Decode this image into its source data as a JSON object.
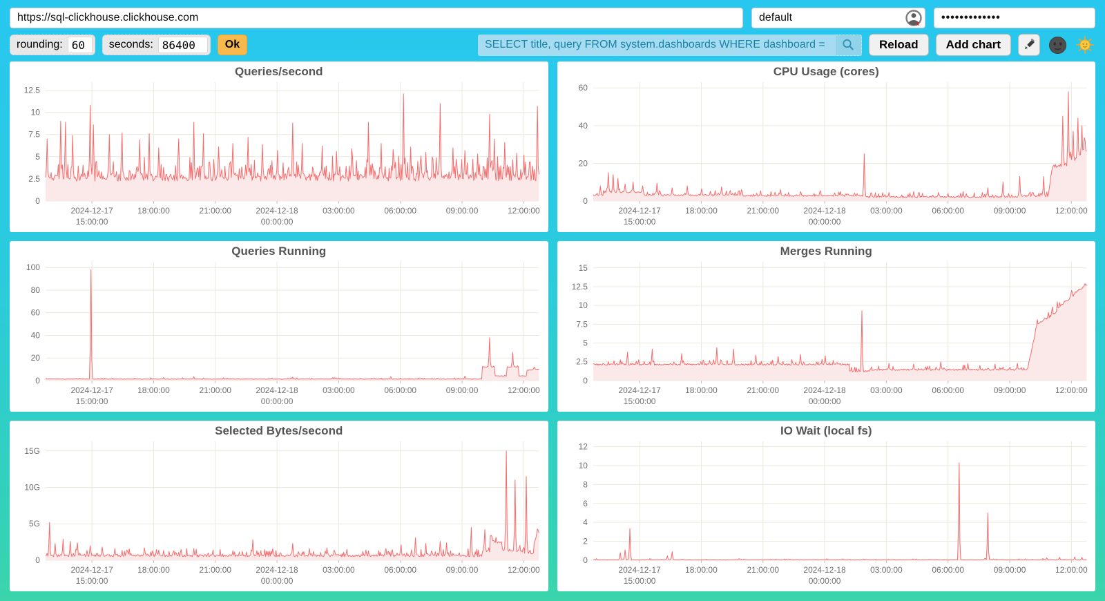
{
  "browser": {
    "url": "https://sql-clickhouse.clickhouse.com",
    "user": "default",
    "password_masked": "•••••••••••••"
  },
  "toolbar": {
    "rounding_label": "rounding:",
    "rounding_value": "60",
    "seconds_label": "seconds:",
    "seconds_value": "86400",
    "ok_label": "Ok",
    "search_value": "SELECT title, query FROM system.dashboards WHERE dashboard = '",
    "reload_label": "Reload",
    "add_chart_label": "Add chart",
    "icons": {
      "search_icon": "magnifier",
      "edit_icon": "pencil",
      "theme_dark_icon": "new-moon-face",
      "theme_light_icon": "sun-with-face",
      "user_profile_icon": "person-with-red-x"
    }
  },
  "colors": {
    "bg_top": "#28c7f0",
    "bg_bottom": "#3bd4ab",
    "panel": "#ffffff",
    "line": "#f56c6c",
    "area_fill": "#fbe9e9",
    "grid": "#ebe9dc",
    "tick_text": "#6e6e6e",
    "title_text": "#555555",
    "search_bg": "#a6dcf1",
    "search_text": "#1a84a8",
    "ok_bg": "#f7b94e"
  },
  "x_axis": {
    "ticks": [
      {
        "f": 0.094,
        "l1": "2024-12-17",
        "l2": "15:00:00"
      },
      {
        "f": 0.219,
        "l1": "18:00:00"
      },
      {
        "f": 0.344,
        "l1": "21:00:00"
      },
      {
        "f": 0.469,
        "l1": "2024-12-18",
        "l2": "00:00:00"
      },
      {
        "f": 0.594,
        "l1": "03:00:00"
      },
      {
        "f": 0.719,
        "l1": "06:00:00"
      },
      {
        "f": 0.844,
        "l1": "09:00:00"
      },
      {
        "f": 0.969,
        "l1": "12:00:00"
      }
    ]
  },
  "chart_data": [
    {
      "type": "area",
      "title": "Queries/second",
      "ylim": [
        0,
        13.4
      ],
      "yticks": [
        {
          "v": 12.5,
          "label": "12.5"
        },
        {
          "v": 10,
          "label": "10"
        },
        {
          "v": 7.5,
          "label": "7.5"
        },
        {
          "v": 5,
          "label": "5"
        },
        {
          "v": 2.5,
          "label": "2.5"
        },
        {
          "v": 0,
          "label": "0"
        }
      ],
      "series_spec": {
        "seed": 11,
        "n": 620,
        "noise": 1.5,
        "spike_prob": 0.3,
        "spike_mult": 1.45,
        "floor": 1.85,
        "segments": [
          [
            0,
            1,
            2.45,
            2.45
          ]
        ],
        "spikes": [
          [
            0.004,
            7.0
          ],
          [
            0.03,
            9.0
          ],
          [
            0.04,
            8.9
          ],
          [
            0.055,
            7.4
          ],
          [
            0.09,
            10.8
          ],
          [
            0.097,
            8.6
          ],
          [
            0.13,
            7.5
          ],
          [
            0.155,
            7.7
          ],
          [
            0.19,
            6.9
          ],
          [
            0.21,
            7.6
          ],
          [
            0.23,
            6.0
          ],
          [
            0.27,
            7.0
          ],
          [
            0.3,
            8.9
          ],
          [
            0.32,
            7.6
          ],
          [
            0.35,
            6.1
          ],
          [
            0.38,
            6.5
          ],
          [
            0.41,
            7.2
          ],
          [
            0.44,
            6.4
          ],
          [
            0.47,
            5.7
          ],
          [
            0.5,
            8.8
          ],
          [
            0.52,
            6.5
          ],
          [
            0.56,
            6.2
          ],
          [
            0.59,
            5.6
          ],
          [
            0.62,
            5.9
          ],
          [
            0.655,
            8.9
          ],
          [
            0.68,
            6.5
          ],
          [
            0.705,
            5.8
          ],
          [
            0.725,
            12.1
          ],
          [
            0.74,
            6.1
          ],
          [
            0.77,
            5.5
          ],
          [
            0.8,
            11.0
          ],
          [
            0.825,
            6.0
          ],
          [
            0.85,
            5.7
          ],
          [
            0.875,
            5.3
          ],
          [
            0.9,
            9.8
          ],
          [
            0.91,
            7.0
          ],
          [
            0.93,
            6.6
          ],
          [
            0.955,
            5.4
          ],
          [
            0.97,
            5.2
          ],
          [
            0.996,
            10.7
          ]
        ]
      }
    },
    {
      "type": "area",
      "title": "CPU Usage (cores)",
      "ylim": [
        0,
        63
      ],
      "yticks": [
        {
          "v": 60,
          "label": "60"
        },
        {
          "v": 40,
          "label": "40"
        },
        {
          "v": 20,
          "label": "20"
        },
        {
          "v": 0,
          "label": "0"
        }
      ],
      "series_spec": {
        "seed": 22,
        "n": 620,
        "noise": 1.3,
        "spike_prob": 0.2,
        "spike_mult": 1.8,
        "floor": 0.8,
        "rel_noise": 0.16,
        "segments": [
          [
            0,
            0.02,
            3,
            3
          ],
          [
            0.02,
            0.1,
            4.5,
            4.5
          ],
          [
            0.1,
            0.3,
            3,
            3
          ],
          [
            0.3,
            0.55,
            2.6,
            2.6
          ],
          [
            0.55,
            0.86,
            2.0,
            2.0
          ],
          [
            0.86,
            0.922,
            2.5,
            2.5
          ],
          [
            0.922,
            0.93,
            3,
            17
          ],
          [
            0.93,
            0.965,
            18,
            19
          ],
          [
            0.965,
            1,
            20,
            26
          ]
        ],
        "spikes": [
          [
            0.015,
            8
          ],
          [
            0.03,
            15
          ],
          [
            0.04,
            14
          ],
          [
            0.05,
            12
          ],
          [
            0.065,
            9
          ],
          [
            0.08,
            10
          ],
          [
            0.1,
            8
          ],
          [
            0.13,
            9.5
          ],
          [
            0.16,
            7
          ],
          [
            0.19,
            8
          ],
          [
            0.22,
            6.5
          ],
          [
            0.26,
            7.5
          ],
          [
            0.3,
            6
          ],
          [
            0.34,
            5.5
          ],
          [
            0.38,
            6
          ],
          [
            0.42,
            5
          ],
          [
            0.46,
            5.5
          ],
          [
            0.5,
            5
          ],
          [
            0.549,
            25
          ],
          [
            0.6,
            4.5
          ],
          [
            0.65,
            5
          ],
          [
            0.7,
            4.5
          ],
          [
            0.75,
            5
          ],
          [
            0.8,
            7
          ],
          [
            0.83,
            10
          ],
          [
            0.865,
            13
          ],
          [
            0.912,
            13
          ],
          [
            0.952,
            45
          ],
          [
            0.963,
            58
          ],
          [
            0.972,
            37
          ],
          [
            0.982,
            44
          ],
          [
            0.99,
            40
          ],
          [
            0.997,
            32
          ]
        ]
      }
    },
    {
      "type": "area",
      "title": "Queries Running",
      "ylim": [
        0,
        105
      ],
      "yticks": [
        {
          "v": 100,
          "label": "100"
        },
        {
          "v": 80,
          "label": "80"
        },
        {
          "v": 60,
          "label": "60"
        },
        {
          "v": 40,
          "label": "40"
        },
        {
          "v": 20,
          "label": "20"
        },
        {
          "v": 0,
          "label": "0"
        }
      ],
      "series_spec": {
        "seed": 33,
        "n": 620,
        "noise": 0.9,
        "spike_prob": 0.1,
        "spike_mult": 1.2,
        "floor": 0.4,
        "segments": [
          [
            0,
            0.885,
            1.3,
            1.3
          ],
          [
            0.885,
            0.91,
            12,
            12
          ],
          [
            0.91,
            0.935,
            4,
            4
          ],
          [
            0.935,
            0.958,
            12,
            12
          ],
          [
            0.958,
            0.975,
            4,
            4
          ],
          [
            0.975,
            1,
            9,
            10
          ]
        ],
        "spikes": [
          [
            0.092,
            98
          ],
          [
            0.3,
            3.5
          ],
          [
            0.5,
            3
          ],
          [
            0.7,
            3.5
          ],
          [
            0.85,
            4
          ],
          [
            0.9,
            38
          ],
          [
            0.947,
            25
          ],
          [
            0.99,
            12
          ]
        ]
      }
    },
    {
      "type": "area",
      "title": "Merges Running",
      "ylim": [
        0,
        15.8
      ],
      "yticks": [
        {
          "v": 15,
          "label": "15"
        },
        {
          "v": 12.5,
          "label": "12.5"
        },
        {
          "v": 10,
          "label": "10"
        },
        {
          "v": 7.5,
          "label": "7.5"
        },
        {
          "v": 5,
          "label": "5"
        },
        {
          "v": 2.5,
          "label": "2.5"
        },
        {
          "v": 0,
          "label": "0"
        }
      ],
      "series_spec": {
        "seed": 44,
        "n": 620,
        "noise": 0.38,
        "spike_prob": 0.18,
        "spike_mult": 1.6,
        "floor": 0.8,
        "rel_noise": 0.06,
        "segments": [
          [
            0,
            0.52,
            2.1,
            2.1
          ],
          [
            0.52,
            0.56,
            1.2,
            1.2
          ],
          [
            0.56,
            0.88,
            1.4,
            1.4
          ],
          [
            0.88,
            0.9,
            1.5,
            7.5
          ],
          [
            0.9,
            0.94,
            7.5,
            9
          ],
          [
            0.94,
            1,
            9.5,
            12.8
          ]
        ],
        "spikes": [
          [
            0.07,
            3.8
          ],
          [
            0.12,
            4.2
          ],
          [
            0.18,
            3.6
          ],
          [
            0.25,
            4.4
          ],
          [
            0.285,
            4.2
          ],
          [
            0.33,
            3.4
          ],
          [
            0.375,
            3.2
          ],
          [
            0.42,
            3.5
          ],
          [
            0.47,
            3.3
          ],
          [
            0.545,
            9.3
          ],
          [
            0.6,
            2.3
          ],
          [
            0.65,
            2.2
          ],
          [
            0.705,
            2.5
          ],
          [
            0.76,
            2.3
          ],
          [
            0.815,
            2.2
          ],
          [
            0.86,
            2.3
          ],
          [
            0.93,
            9.8
          ],
          [
            0.97,
            12
          ],
          [
            0.996,
            12.9
          ]
        ]
      }
    },
    {
      "type": "area",
      "title": "Selected Bytes/second",
      "ylim": [
        0,
        16.3
      ],
      "yticks": [
        {
          "v": 15,
          "label": "15G"
        },
        {
          "v": 10,
          "label": "10G"
        },
        {
          "v": 5,
          "label": "5G"
        },
        {
          "v": 0,
          "label": "0"
        }
      ],
      "series_spec": {
        "seed": 55,
        "n": 620,
        "noise": 0.55,
        "spike_prob": 0.25,
        "spike_mult": 1.6,
        "floor": 0.12,
        "segments": [
          [
            0,
            0.885,
            0.55,
            0.55
          ],
          [
            0.885,
            0.9,
            1.2,
            1.2
          ],
          [
            0.9,
            0.925,
            2.6,
            2.3
          ],
          [
            0.925,
            0.97,
            1.4,
            1.1
          ],
          [
            0.97,
            0.99,
            0.8,
            0.8
          ],
          [
            0.99,
            1,
            2.5,
            3.8
          ]
        ],
        "spikes": [
          [
            0.008,
            5.2
          ],
          [
            0.02,
            2.3
          ],
          [
            0.035,
            2.9
          ],
          [
            0.05,
            2.6
          ],
          [
            0.065,
            2.4
          ],
          [
            0.09,
            2.0
          ],
          [
            0.115,
            1.8
          ],
          [
            0.14,
            1.6
          ],
          [
            0.17,
            1.5
          ],
          [
            0.2,
            1.7
          ],
          [
            0.23,
            1.4
          ],
          [
            0.26,
            1.3
          ],
          [
            0.3,
            1.6
          ],
          [
            0.34,
            1.4
          ],
          [
            0.38,
            1.3
          ],
          [
            0.42,
            2.8
          ],
          [
            0.46,
            1.6
          ],
          [
            0.5,
            2.3
          ],
          [
            0.535,
            1.6
          ],
          [
            0.57,
            1.7
          ],
          [
            0.61,
            1.5
          ],
          [
            0.65,
            1.4
          ],
          [
            0.69,
            1.6
          ],
          [
            0.72,
            2.1
          ],
          [
            0.75,
            3.1
          ],
          [
            0.77,
            2.3
          ],
          [
            0.8,
            2.6
          ],
          [
            0.812,
            2.4
          ],
          [
            0.862,
            4.5
          ],
          [
            0.89,
            4.2
          ],
          [
            0.933,
            15.0
          ],
          [
            0.952,
            11.0
          ],
          [
            0.974,
            11.5
          ],
          [
            0.996,
            4.3
          ]
        ]
      }
    },
    {
      "type": "area",
      "title": "IO Wait (local fs)",
      "ylim": [
        0,
        12.55
      ],
      "yticks": [
        {
          "v": 12,
          "label": "12"
        },
        {
          "v": 10,
          "label": "10"
        },
        {
          "v": 8,
          "label": "8"
        },
        {
          "v": 6,
          "label": "6"
        },
        {
          "v": 4,
          "label": "4"
        },
        {
          "v": 2,
          "label": "2"
        },
        {
          "v": 0,
          "label": "0"
        }
      ],
      "series_spec": {
        "seed": 66,
        "n": 620,
        "noise": 0.07,
        "spike_prob": 0.05,
        "spike_mult": 2.0,
        "floor": 0.005,
        "segments": [
          [
            0,
            1,
            0.04,
            0.04
          ]
        ],
        "spikes": [
          [
            0.055,
            0.8
          ],
          [
            0.065,
            1.1
          ],
          [
            0.075,
            3.35
          ],
          [
            0.15,
            0.45
          ],
          [
            0.16,
            0.9
          ],
          [
            0.23,
            0.12
          ],
          [
            0.3,
            0.1
          ],
          [
            0.37,
            0.12
          ],
          [
            0.45,
            0.1
          ],
          [
            0.52,
            0.12
          ],
          [
            0.6,
            0.1
          ],
          [
            0.68,
            0.1
          ],
          [
            0.742,
            10.3
          ],
          [
            0.8,
            5.0
          ],
          [
            0.86,
            0.08
          ],
          [
            0.92,
            0.25
          ],
          [
            0.945,
            0.3
          ],
          [
            0.975,
            0.35
          ],
          [
            0.99,
            0.3
          ]
        ]
      }
    }
  ]
}
